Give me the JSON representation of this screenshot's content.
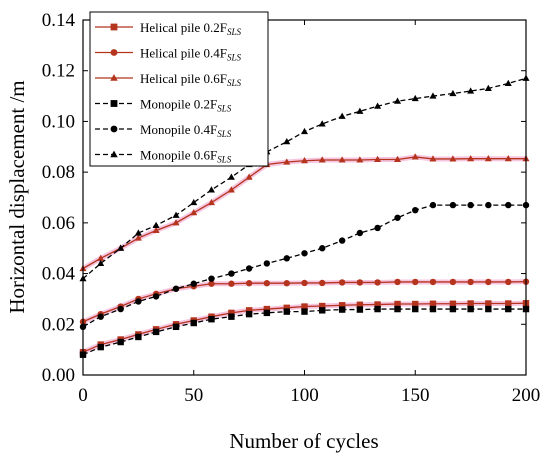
{
  "chart_data": {
    "type": "line",
    "title": "",
    "xlabel": "Number of cycles",
    "ylabel": "Horizontal displacement /m",
    "xlim": [
      0,
      200
    ],
    "ylim": [
      0,
      0.14
    ],
    "xticks": [
      "0",
      "50",
      "100",
      "150",
      "200"
    ],
    "yticks": [
      "0.00",
      "0.02",
      "0.04",
      "0.06",
      "0.08",
      "0.10",
      "0.12",
      "0.14"
    ],
    "grid": false,
    "legend_position": "top-left",
    "series": [
      {
        "name": "Helical pile 0.2F",
        "name_subscript": "SLS",
        "color": "#b5341e",
        "line_style": "solid",
        "marker": "square",
        "x": [
          0,
          8,
          17,
          25,
          33,
          42,
          50,
          58,
          67,
          75,
          83,
          92,
          100,
          108,
          117,
          125,
          133,
          142,
          150,
          158,
          167,
          175,
          183,
          192,
          200
        ],
        "y": [
          0.009,
          0.012,
          0.014,
          0.016,
          0.018,
          0.02,
          0.0215,
          0.023,
          0.0245,
          0.0255,
          0.026,
          0.0265,
          0.027,
          0.0272,
          0.0275,
          0.0277,
          0.0278,
          0.028,
          0.028,
          0.0281,
          0.0281,
          0.0282,
          0.0282,
          0.0282,
          0.0283
        ]
      },
      {
        "name": "Helical pile 0.4F",
        "name_subscript": "SLS",
        "color": "#b5341e",
        "line_style": "solid",
        "marker": "circle",
        "x": [
          0,
          8,
          17,
          25,
          33,
          42,
          50,
          58,
          67,
          75,
          83,
          92,
          100,
          108,
          117,
          125,
          133,
          142,
          150,
          158,
          167,
          175,
          183,
          192,
          200
        ],
        "y": [
          0.021,
          0.024,
          0.027,
          0.03,
          0.032,
          0.034,
          0.035,
          0.036,
          0.036,
          0.0362,
          0.0362,
          0.0362,
          0.0363,
          0.0363,
          0.0365,
          0.0365,
          0.0365,
          0.0367,
          0.0367,
          0.0367,
          0.0367,
          0.0367,
          0.0367,
          0.0367,
          0.0368
        ]
      },
      {
        "name": "Helical pile 0.6F",
        "name_subscript": "SLS",
        "color": "#b5341e",
        "line_style": "solid",
        "marker": "triangle",
        "x": [
          0,
          8,
          17,
          25,
          33,
          42,
          50,
          58,
          67,
          75,
          83,
          92,
          100,
          108,
          117,
          125,
          133,
          142,
          150,
          158,
          167,
          175,
          183,
          192,
          200
        ],
        "y": [
          0.042,
          0.046,
          0.05,
          0.054,
          0.057,
          0.06,
          0.064,
          0.068,
          0.073,
          0.078,
          0.083,
          0.084,
          0.0845,
          0.0848,
          0.0848,
          0.0848,
          0.085,
          0.085,
          0.086,
          0.0852,
          0.0852,
          0.0853,
          0.0853,
          0.0853,
          0.0853
        ]
      },
      {
        "name": "Monopile 0.2F",
        "name_subscript": "SLS",
        "color": "#000000",
        "line_style": "dashed",
        "marker": "square",
        "x": [
          0,
          8,
          17,
          25,
          33,
          42,
          50,
          58,
          67,
          75,
          83,
          92,
          100,
          108,
          117,
          125,
          133,
          142,
          150,
          158,
          167,
          175,
          183,
          192,
          200
        ],
        "y": [
          0.008,
          0.011,
          0.013,
          0.015,
          0.017,
          0.019,
          0.0205,
          0.022,
          0.023,
          0.024,
          0.0245,
          0.025,
          0.025,
          0.0255,
          0.0258,
          0.0258,
          0.026,
          0.026,
          0.026,
          0.026,
          0.026,
          0.026,
          0.026,
          0.026,
          0.026
        ]
      },
      {
        "name": "Monopile 0.4F",
        "name_subscript": "SLS",
        "color": "#000000",
        "line_style": "dashed",
        "marker": "circle",
        "x": [
          0,
          8,
          17,
          25,
          33,
          42,
          50,
          58,
          67,
          75,
          83,
          92,
          100,
          108,
          117,
          125,
          133,
          142,
          150,
          158,
          167,
          175,
          183,
          192,
          200
        ],
        "y": [
          0.019,
          0.023,
          0.026,
          0.029,
          0.031,
          0.034,
          0.036,
          0.038,
          0.04,
          0.042,
          0.044,
          0.046,
          0.048,
          0.05,
          0.053,
          0.056,
          0.058,
          0.062,
          0.065,
          0.067,
          0.067,
          0.067,
          0.067,
          0.067,
          0.067
        ]
      },
      {
        "name": "Monopile 0.6F",
        "name_subscript": "SLS",
        "color": "#000000",
        "line_style": "dashed",
        "marker": "triangle",
        "x": [
          0,
          8,
          17,
          25,
          33,
          42,
          50,
          58,
          67,
          75,
          83,
          92,
          100,
          108,
          117,
          125,
          133,
          142,
          150,
          158,
          167,
          175,
          183,
          192,
          200
        ],
        "y": [
          0.038,
          0.044,
          0.05,
          0.056,
          0.059,
          0.063,
          0.068,
          0.073,
          0.078,
          0.083,
          0.088,
          0.092,
          0.096,
          0.099,
          0.102,
          0.104,
          0.106,
          0.108,
          0.109,
          0.11,
          0.111,
          0.112,
          0.113,
          0.115,
          0.117
        ]
      }
    ]
  }
}
